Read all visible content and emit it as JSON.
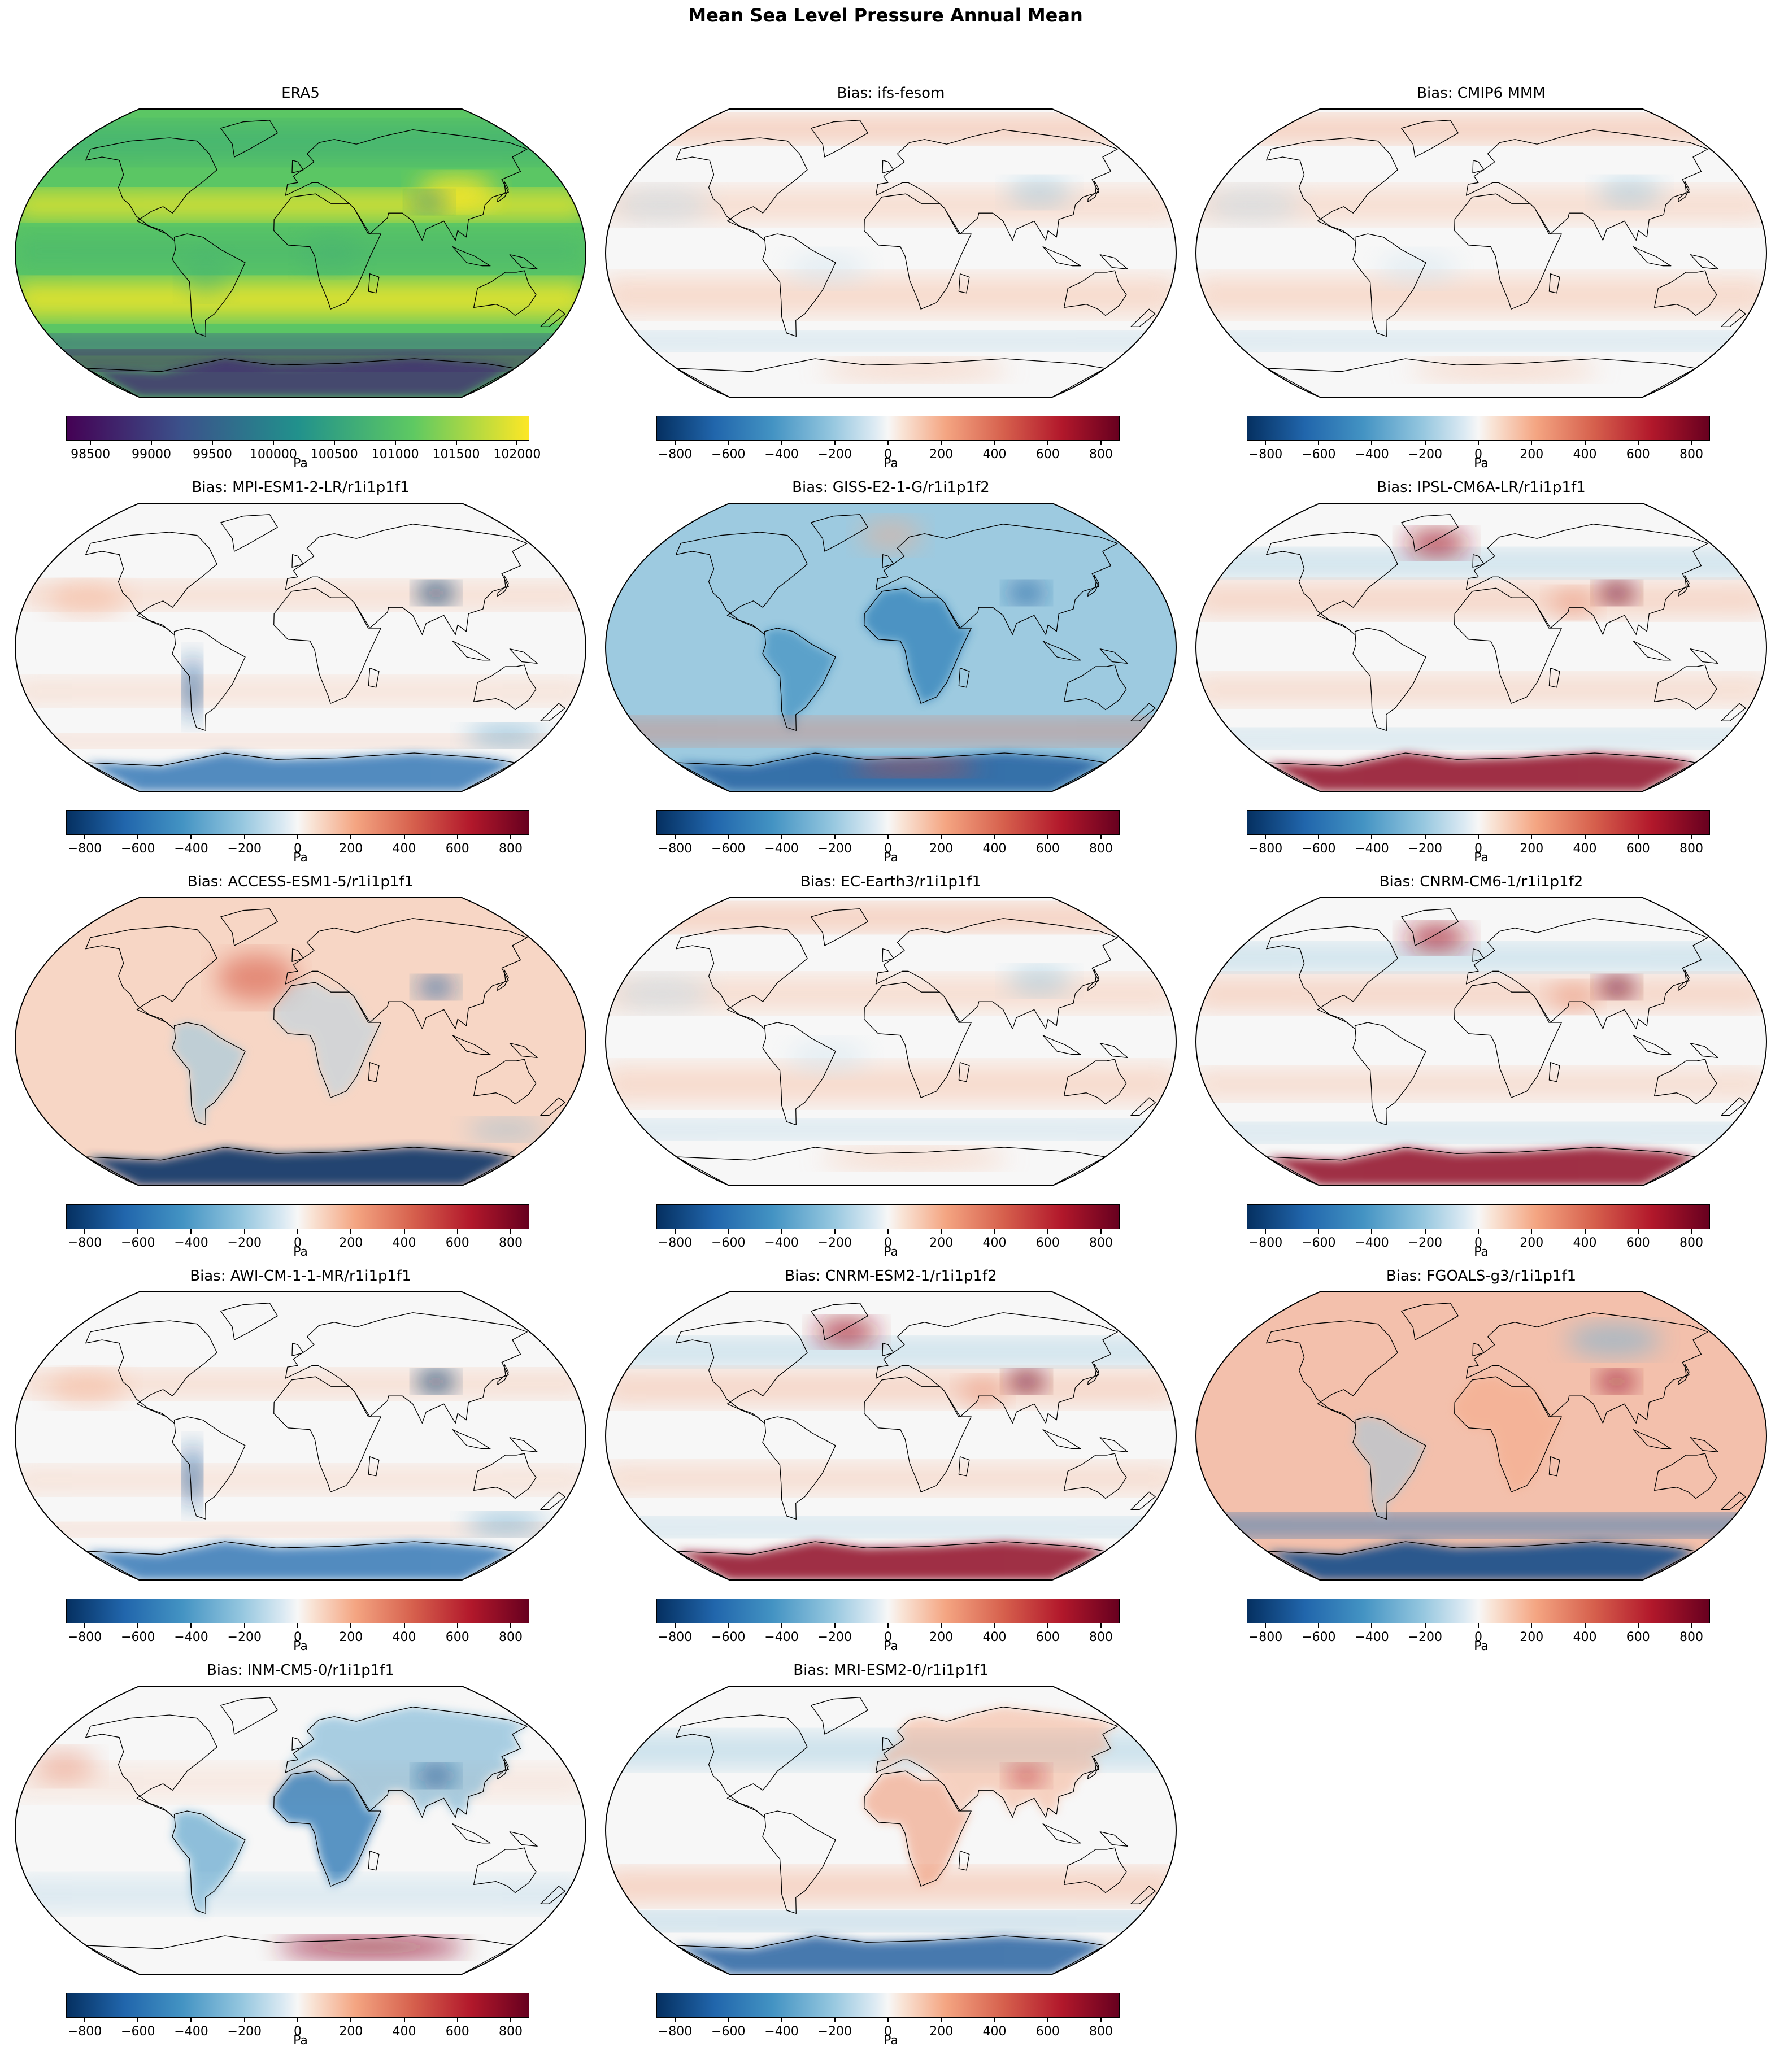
{
  "figure": {
    "title": "Mean Sea Level Pressure Annual Mean"
  },
  "colorbars": {
    "era5": {
      "ticks": [
        98500,
        99000,
        99500,
        100000,
        100500,
        101000,
        101500,
        102000
      ],
      "labels": [
        "98500",
        "99000",
        "99500",
        "100000",
        "100500",
        "101000",
        "101500",
        "102000"
      ],
      "min": 98300,
      "max": 102100,
      "unit": "Pa",
      "colormap": "viridis"
    },
    "bias": {
      "ticks": [
        -800,
        -600,
        -400,
        -200,
        0,
        200,
        400,
        600,
        800
      ],
      "labels": [
        "−800",
        "−600",
        "−400",
        "−200",
        "0",
        "200",
        "400",
        "600",
        "800"
      ],
      "min": -870,
      "max": 870,
      "unit": "Pa",
      "colormap": "RdBu_r"
    }
  },
  "panels": [
    {
      "title": "ERA5",
      "kind": "era5",
      "pattern": "era5"
    },
    {
      "title": "Bias: ifs-fesom",
      "kind": "bias",
      "pattern": "mild"
    },
    {
      "title": "Bias: CMIP6 MMM",
      "kind": "bias",
      "pattern": "mild"
    },
    {
      "title": "Bias: MPI-ESM1-2-LR/r1i1p1f1",
      "kind": "bias",
      "pattern": "tibet-neg"
    },
    {
      "title": "Bias: GISS-E2-1-G/r1i1p1f2",
      "kind": "bias",
      "pattern": "giss"
    },
    {
      "title": "Bias: IPSL-CM6A-LR/r1i1p1f1",
      "kind": "bias",
      "pattern": "tibet-pos-ant-pos"
    },
    {
      "title": "Bias: ACCESS-ESM1-5/r1i1p1f1",
      "kind": "bias",
      "pattern": "access"
    },
    {
      "title": "Bias: EC-Earth3/r1i1p1f1",
      "kind": "bias",
      "pattern": "mild"
    },
    {
      "title": "Bias: CNRM-CM6-1/r1i1p1f2",
      "kind": "bias",
      "pattern": "tibet-pos-ant-pos"
    },
    {
      "title": "Bias: AWI-CM-1-1-MR/r1i1p1f1",
      "kind": "bias",
      "pattern": "tibet-neg"
    },
    {
      "title": "Bias: CNRM-ESM2-1/r1i1p1f2",
      "kind": "bias",
      "pattern": "tibet-pos-ant-pos"
    },
    {
      "title": "Bias: FGOALS-g3/r1i1p1f1",
      "kind": "bias",
      "pattern": "fgoals"
    },
    {
      "title": "Bias: INM-CM5-0/r1i1p1f1",
      "kind": "bias",
      "pattern": "inm"
    },
    {
      "title": "Bias: MRI-ESM2-0/r1i1p1f1",
      "kind": "bias",
      "pattern": "mri"
    }
  ]
}
